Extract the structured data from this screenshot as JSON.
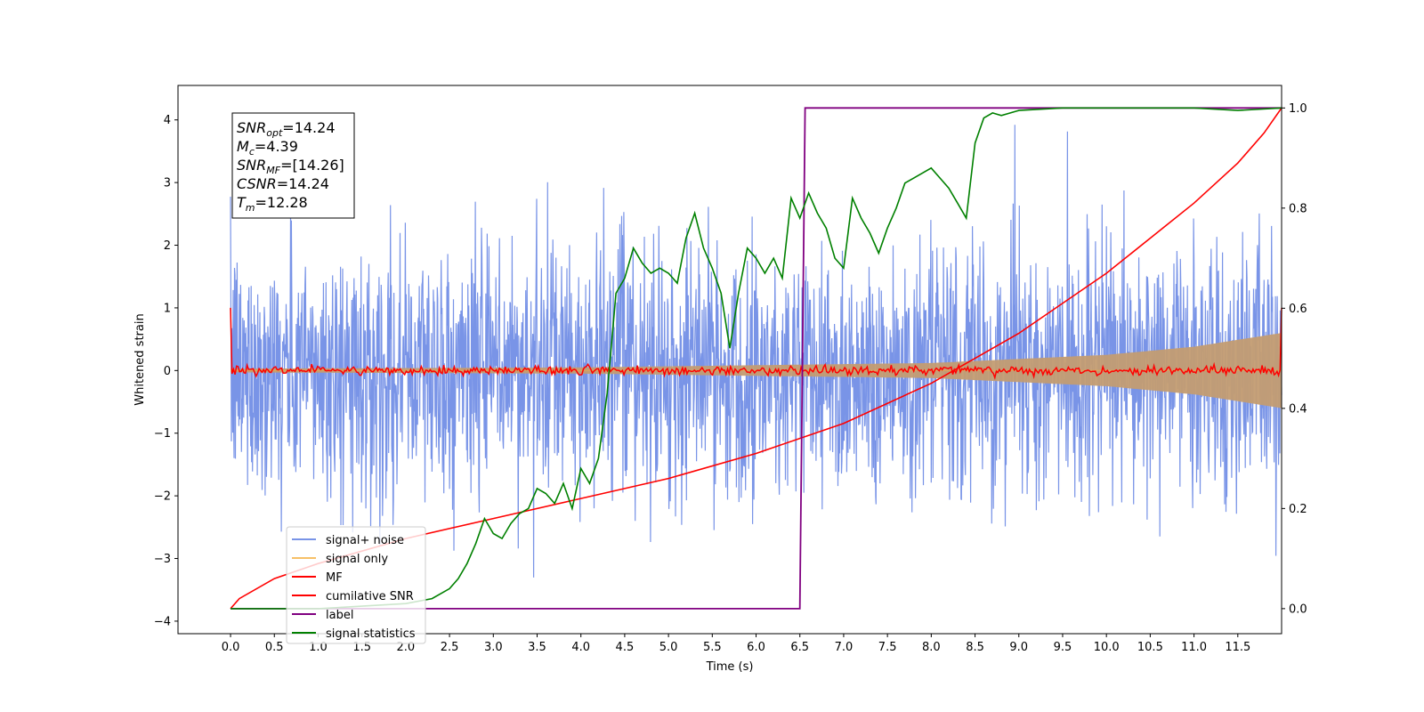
{
  "chart_data": {
    "type": "line",
    "xlabel": "Time (s)",
    "ylabel": "Whitened strain",
    "xlim": [
      -0.6,
      12.0
    ],
    "ylim": [
      -4.2,
      4.55
    ],
    "y2lim": [
      -0.05,
      1.045
    ],
    "xticks": [
      0.0,
      0.5,
      1.0,
      1.5,
      2.0,
      2.5,
      3.0,
      3.5,
      4.0,
      4.5,
      5.0,
      5.5,
      6.0,
      6.5,
      7.0,
      7.5,
      8.0,
      8.5,
      9.0,
      9.5,
      10.0,
      10.5,
      11.0,
      11.5
    ],
    "xtick_labels": [
      "0.0",
      "0.5",
      "1.0",
      "1.5",
      "2.0",
      "2.5",
      "3.0",
      "3.5",
      "4.0",
      "4.5",
      "5.0",
      "5.5",
      "6.0",
      "6.5",
      "7.0",
      "7.5",
      "8.0",
      "8.5",
      "9.0",
      "9.5",
      "10.0",
      "10.5",
      "11.0",
      "11.5"
    ],
    "yticks": [
      -4,
      -3,
      -2,
      -1,
      0,
      1,
      2,
      3,
      4
    ],
    "ytick_labels": [
      "−4",
      "−3",
      "−2",
      "−1",
      "0",
      "1",
      "2",
      "3",
      "4"
    ],
    "y2ticks": [
      0.0,
      0.2,
      0.4,
      0.6,
      0.8,
      1.0
    ],
    "y2tick_labels": [
      "0.0",
      "0.2",
      "0.4",
      "0.6",
      "0.8",
      "1.0"
    ],
    "grid": false,
    "legend_position": "lower-left",
    "series": [
      {
        "name": "signal+ noise",
        "axis": "left",
        "color": "#6a88e4",
        "x_range": [
          0.0,
          12.0
        ],
        "approx_std": 1.0,
        "approx_peak_range": [
          -3.8,
          4.2
        ]
      },
      {
        "name": "signal only",
        "axis": "left",
        "color": "#f5b041",
        "x_range": [
          0.0,
          12.0
        ],
        "approx_envelope": {
          "x": [
            0.0,
            4.0,
            8.0,
            10.0,
            11.0,
            12.0
          ],
          "amplitude": [
            0.03,
            0.05,
            0.12,
            0.25,
            0.38,
            0.6
          ]
        }
      },
      {
        "name": "MF",
        "axis": "left",
        "color": "#ff0000",
        "x_range": [
          0.0,
          12.0
        ],
        "approx_level": 0.0,
        "approx_noise_amplitude": 0.06,
        "endpoints": [
          1.0,
          1.0
        ]
      },
      {
        "name": "cumilative SNR",
        "axis": "right",
        "color": "#ff0000",
        "x": [
          0.0,
          0.1,
          0.5,
          1.0,
          2.0,
          3.0,
          4.0,
          5.0,
          6.0,
          7.0,
          8.0,
          9.0,
          10.0,
          10.5,
          11.0,
          11.5,
          11.8,
          12.0
        ],
        "y": [
          0.0,
          0.02,
          0.06,
          0.09,
          0.14,
          0.18,
          0.22,
          0.26,
          0.31,
          0.37,
          0.45,
          0.55,
          0.67,
          0.74,
          0.81,
          0.89,
          0.95,
          1.0
        ]
      },
      {
        "name": "label",
        "axis": "right",
        "color": "#800080",
        "x": [
          0.0,
          6.5,
          6.56,
          12.0
        ],
        "y": [
          0.0,
          0.0,
          1.0,
          1.0
        ]
      },
      {
        "name": "signal statistics",
        "axis": "right",
        "color": "#008000",
        "x": [
          0.0,
          0.5,
          1.0,
          1.5,
          2.0,
          2.3,
          2.5,
          2.6,
          2.7,
          2.8,
          2.9,
          3.0,
          3.1,
          3.2,
          3.3,
          3.4,
          3.5,
          3.6,
          3.7,
          3.8,
          3.9,
          4.0,
          4.1,
          4.2,
          4.3,
          4.4,
          4.5,
          4.6,
          4.7,
          4.8,
          4.9,
          5.0,
          5.1,
          5.2,
          5.3,
          5.4,
          5.5,
          5.6,
          5.7,
          5.8,
          5.9,
          6.0,
          6.1,
          6.2,
          6.3,
          6.4,
          6.5,
          6.6,
          6.7,
          6.8,
          6.9,
          7.0,
          7.1,
          7.2,
          7.3,
          7.4,
          7.5,
          7.6,
          7.7,
          7.8,
          7.9,
          8.0,
          8.1,
          8.2,
          8.3,
          8.4,
          8.5,
          8.6,
          8.7,
          8.8,
          9.0,
          9.5,
          10.0,
          10.5,
          11.0,
          11.5,
          12.0
        ],
        "y": [
          0.0,
          0.0,
          0.0,
          0.005,
          0.01,
          0.02,
          0.04,
          0.06,
          0.09,
          0.13,
          0.18,
          0.15,
          0.14,
          0.17,
          0.19,
          0.2,
          0.24,
          0.23,
          0.21,
          0.25,
          0.2,
          0.28,
          0.25,
          0.3,
          0.43,
          0.63,
          0.66,
          0.72,
          0.69,
          0.67,
          0.68,
          0.67,
          0.65,
          0.74,
          0.79,
          0.72,
          0.68,
          0.63,
          0.52,
          0.63,
          0.72,
          0.7,
          0.67,
          0.7,
          0.66,
          0.82,
          0.78,
          0.83,
          0.79,
          0.76,
          0.7,
          0.68,
          0.82,
          0.78,
          0.75,
          0.71,
          0.76,
          0.8,
          0.85,
          0.86,
          0.87,
          0.88,
          0.86,
          0.84,
          0.81,
          0.78,
          0.93,
          0.98,
          0.99,
          0.985,
          0.995,
          1.0,
          1.0,
          1.0,
          1.0,
          0.995,
          1.0
        ]
      }
    ]
  },
  "annotation_box": {
    "snr_opt_label": "SNR",
    "snr_opt_sub": "opt",
    "snr_opt_value": "=14.24",
    "mc_label": "M",
    "mc_sub": "c",
    "mc_value": "=4.39",
    "snr_mf_label": "SNR",
    "snr_mf_sub": "MF",
    "snr_mf_value": "=[14.26]",
    "csnr_label": "CSNR",
    "csnr_value": "=14.24",
    "tm_label": "T",
    "tm_sub": "m",
    "tm_value": "=12.28"
  },
  "colors": {
    "signal_noise": "#6a88e4",
    "signal_only": "#f5b041",
    "signal_only_fill": "#c39c72",
    "mf": "#ff0000",
    "cumulative_snr": "#ff0000",
    "label": "#800080",
    "signal_statistics": "#008000"
  }
}
